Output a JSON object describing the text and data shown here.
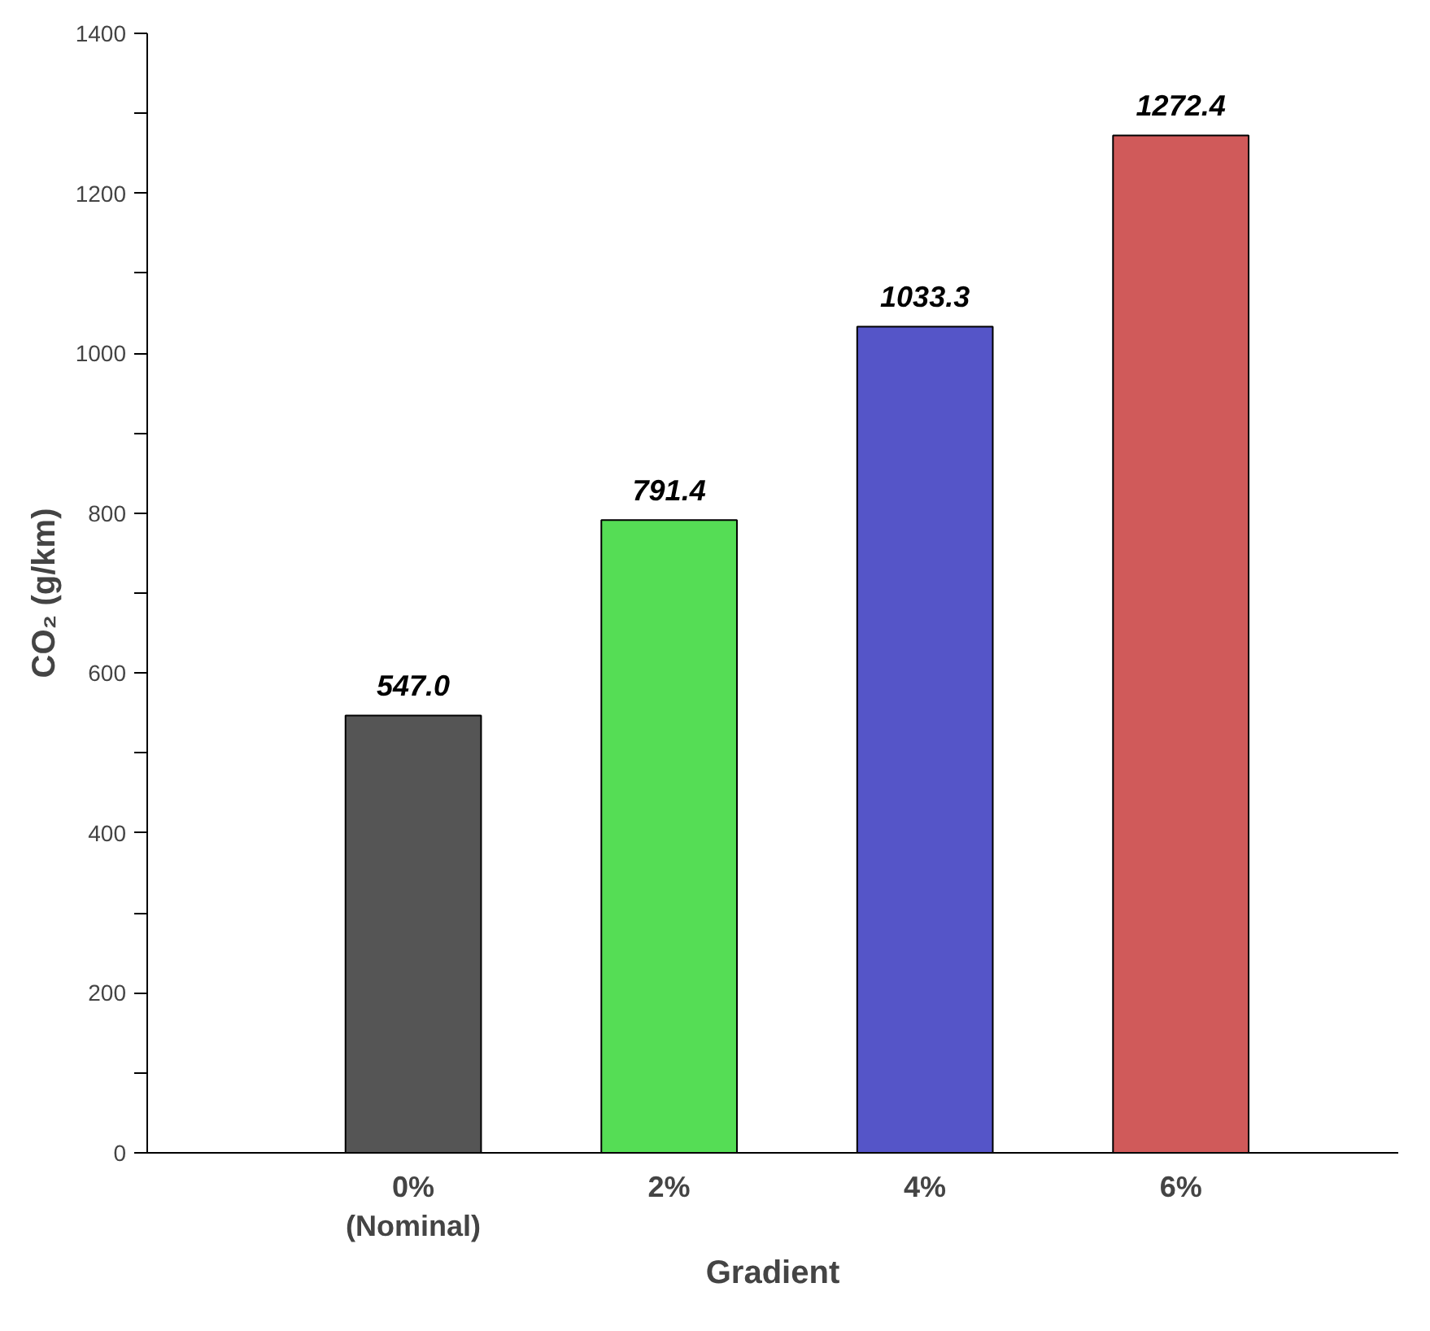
{
  "chart_data": {
    "type": "bar",
    "xlabel": "Gradient",
    "ylabel": "CO₂ (g/km)",
    "categories": [
      "0%\n(Nominal)",
      "2%",
      "4%",
      "6%"
    ],
    "values": [
      547.0,
      791.4,
      1033.3,
      1272.4
    ],
    "colors": [
      "#555555",
      "#55dd55",
      "#5555c8",
      "#d05a5a"
    ],
    "value_labels": [
      "547.0",
      "791.4",
      "1033.3",
      "1272.4"
    ],
    "ylim": [
      0,
      1400
    ],
    "yticks": [
      0,
      {
        "value": 100,
        "label": null
      },
      200,
      {
        "value": 300,
        "label": null
      },
      400,
      {
        "value": 500,
        "label": null
      },
      600,
      {
        "value": 700,
        "label": null
      },
      800,
      {
        "value": 900,
        "label": null
      },
      1000,
      {
        "value": 1100,
        "label": null
      },
      1200,
      {
        "value": 1300,
        "label": null
      },
      1400
    ],
    "grid": false
  }
}
